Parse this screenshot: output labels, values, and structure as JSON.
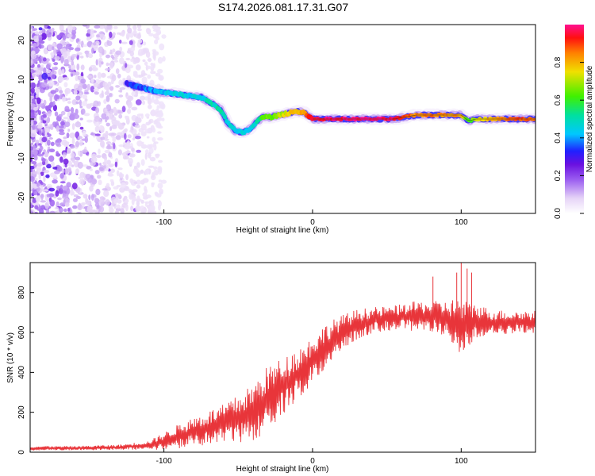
{
  "title": "S174.2026.081.17.31.G07",
  "colors": {
    "snr_line": "#e8353a",
    "frame": "#000000",
    "trace_core": "#e8353a"
  },
  "chart_data": [
    {
      "type": "heatmap",
      "name": "spectrogram",
      "xlabel": "Height of straight line (km)",
      "ylabel": "Frequency (Hz)",
      "xlim": [
        -190,
        150
      ],
      "ylim": [
        -24,
        24
      ],
      "xticks": [
        -100,
        0,
        100
      ],
      "yticks": [
        -20,
        -10,
        0,
        10,
        20
      ],
      "colorbar": {
        "label": "Normalized spectral amplitude",
        "range": [
          0,
          1
        ],
        "ticks": [
          "0.0",
          "0.2",
          "0.4",
          "0.6",
          "0.8"
        ],
        "tick_values": [
          0.0,
          0.2,
          0.4,
          0.6,
          0.8
        ],
        "colormap": [
          [
            0.0,
            "#ffffff"
          ],
          [
            0.08,
            "#e6d4f7"
          ],
          [
            0.18,
            "#9a5cf0"
          ],
          [
            0.26,
            "#6a10e0"
          ],
          [
            0.33,
            "#2020ff"
          ],
          [
            0.42,
            "#00c8ff"
          ],
          [
            0.52,
            "#00e0a0"
          ],
          [
            0.62,
            "#40f000"
          ],
          [
            0.75,
            "#f0e000"
          ],
          [
            0.85,
            "#ff8000"
          ],
          [
            0.93,
            "#ff1010"
          ],
          [
            1.0,
            "#ff1090"
          ]
        ]
      },
      "ridge": {
        "x": [
          -125,
          -115,
          -105,
          -95,
          -85,
          -75,
          -68,
          -62,
          -57,
          -52,
          -47,
          -42,
          -38,
          -34,
          -28,
          -22,
          -16,
          -10,
          -5,
          0,
          10,
          30,
          55,
          62,
          70,
          80,
          90,
          100,
          105,
          110,
          118,
          130,
          140,
          150
        ],
        "freq": [
          9,
          8,
          7,
          6.5,
          6,
          5.5,
          4,
          2.5,
          -1,
          -3,
          -3.5,
          -2.5,
          -1,
          0.5,
          0.5,
          1,
          1.5,
          2,
          1.5,
          0,
          0,
          0,
          0,
          0.5,
          1,
          1,
          1,
          1,
          -0.5,
          0,
          0,
          0,
          0,
          0
        ],
        "amplitude": [
          0.3,
          0.35,
          0.4,
          0.45,
          0.45,
          0.45,
          0.5,
          0.5,
          0.45,
          0.45,
          0.45,
          0.45,
          0.5,
          0.6,
          0.65,
          0.7,
          0.75,
          0.8,
          0.85,
          0.95,
          0.97,
          0.98,
          0.97,
          0.9,
          0.85,
          0.85,
          0.85,
          0.8,
          0.6,
          0.7,
          0.8,
          0.85,
          0.88,
          0.85
        ]
      },
      "noise_region_x": [
        -190,
        -110
      ]
    },
    {
      "type": "line",
      "name": "snr",
      "xlabel": "Height of straight line (km)",
      "ylabel": "SNR (10 * v/v)",
      "xlim": [
        -190,
        150
      ],
      "ylim": [
        0,
        950
      ],
      "xticks": [
        -100,
        0,
        100
      ],
      "yticks": [
        0,
        200,
        400,
        600,
        800
      ],
      "envelope": {
        "x": [
          -190,
          -160,
          -130,
          -110,
          -100,
          -90,
          -80,
          -70,
          -60,
          -50,
          -40,
          -30,
          -20,
          -10,
          0,
          10,
          20,
          30,
          40,
          50,
          60,
          70,
          80,
          90,
          95,
          100,
          105,
          110,
          120,
          130,
          140,
          150
        ],
        "mean": [
          20,
          20,
          25,
          35,
          55,
          80,
          100,
          120,
          140,
          165,
          200,
          270,
          330,
          390,
          460,
          540,
          600,
          640,
          660,
          670,
          675,
          680,
          680,
          670,
          650,
          620,
          640,
          660,
          650,
          650,
          650,
          650
        ],
        "spread": [
          10,
          10,
          12,
          20,
          40,
          55,
          70,
          80,
          90,
          110,
          130,
          150,
          130,
          120,
          110,
          100,
          80,
          70,
          60,
          55,
          60,
          70,
          70,
          80,
          110,
          140,
          100,
          80,
          60,
          55,
          55,
          55
        ]
      },
      "peaks": [
        {
          "x": 81,
          "y": 880
        },
        {
          "x": 97,
          "y": 900
        },
        {
          "x": 100,
          "y": 950
        },
        {
          "x": 104,
          "y": 920
        },
        {
          "x": 107,
          "y": 900
        }
      ]
    }
  ]
}
